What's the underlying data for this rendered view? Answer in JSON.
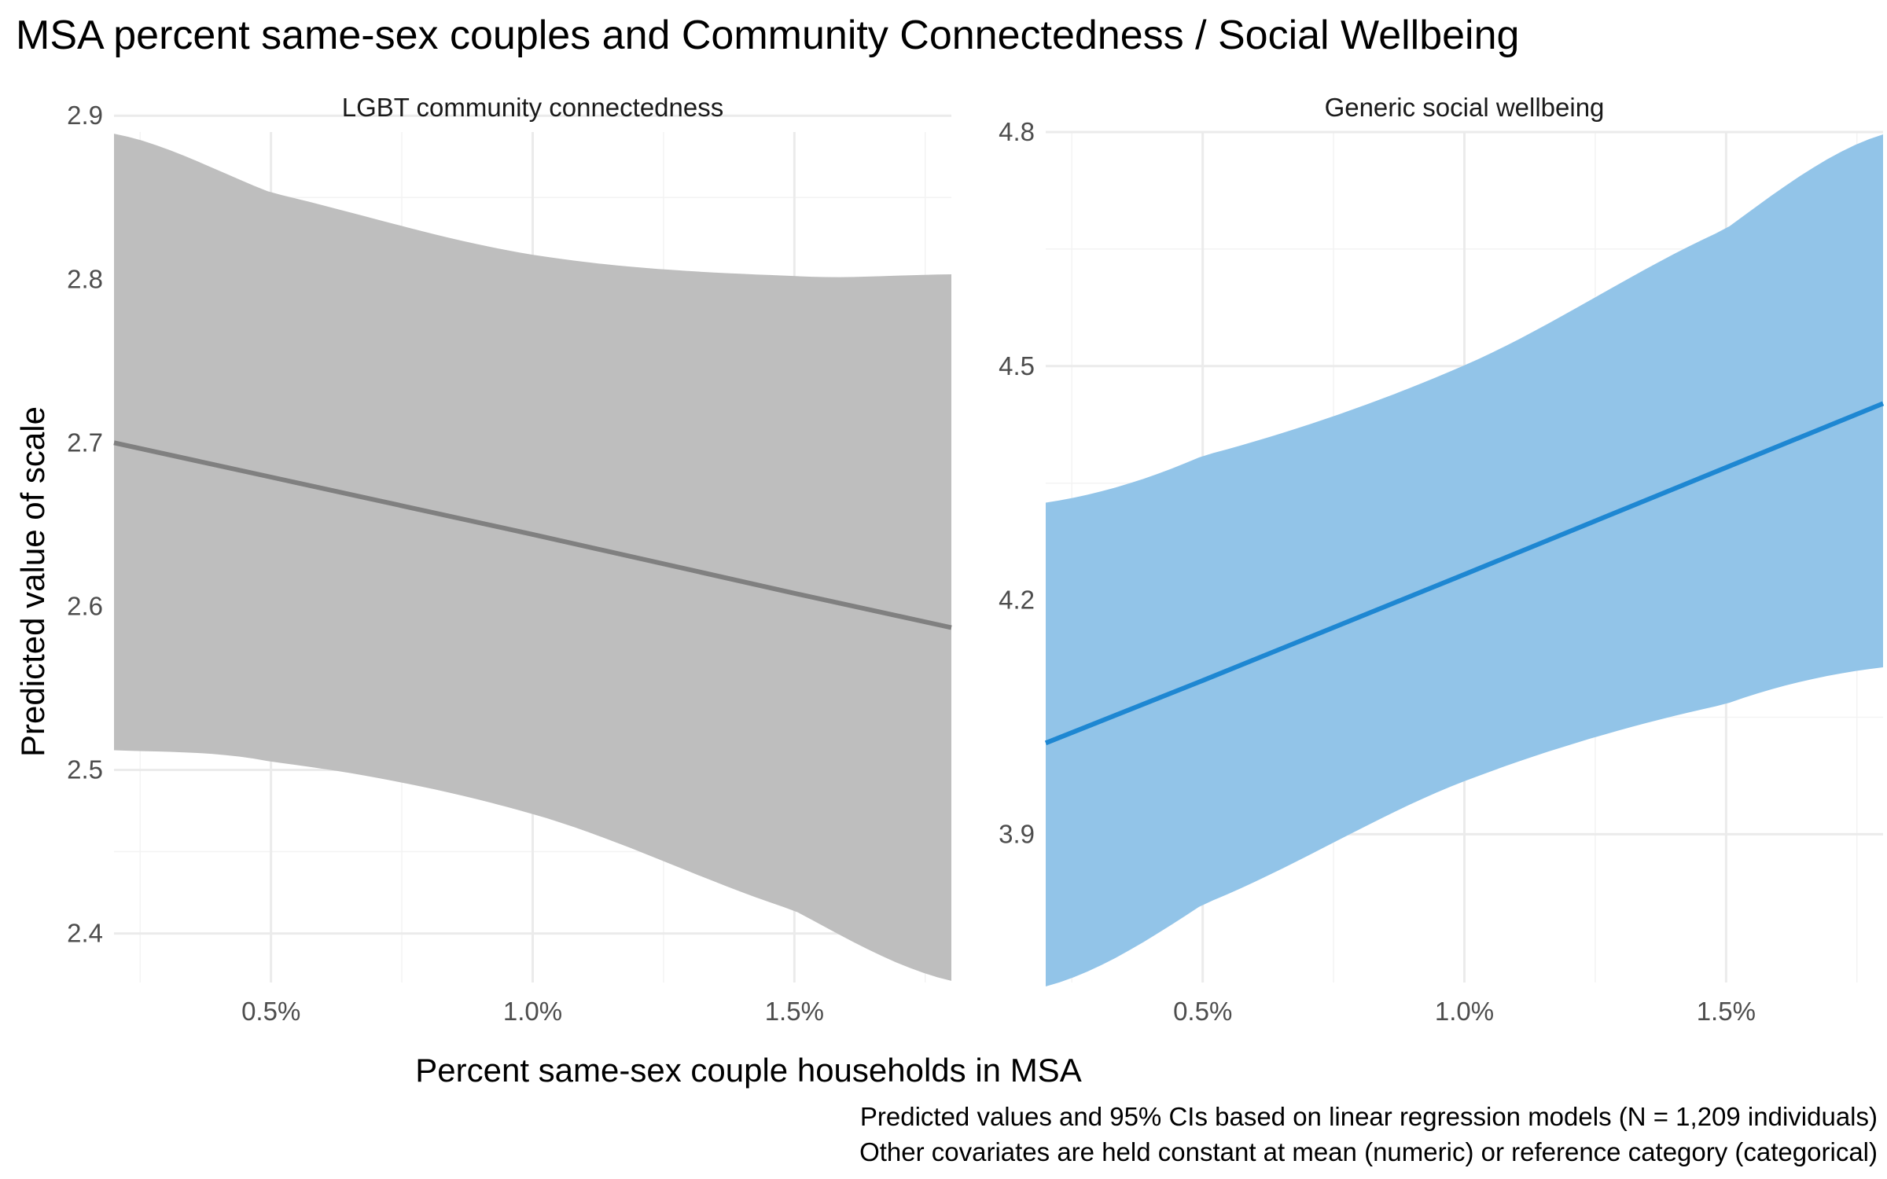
{
  "title": "MSA percent same-sex couples and Community Connectedness / Social Wellbeing",
  "xlabel": "Percent same-sex couple households in MSA",
  "ylabel": "Predicted value of scale",
  "caption_lines": [
    "Predicted values and 95% CIs based on linear regression models (N = 1,209 individuals)",
    "Other covariates are held constant at mean (numeric) or reference category (categorical)"
  ],
  "chart_data": [
    {
      "type": "line",
      "facet": "LGBT community connectedness",
      "xlim": [
        0.2,
        1.8
      ],
      "ylim": [
        2.37,
        2.89
      ],
      "x_ticks": [
        0.5,
        1.0,
        1.5
      ],
      "x_tick_labels": [
        "0.5%",
        "1.0%",
        "1.5%"
      ],
      "y_ticks": [
        2.4,
        2.5,
        2.6,
        2.7,
        2.8,
        2.9
      ],
      "y_tick_labels": [
        "2.4",
        "2.5",
        "2.6",
        "2.7",
        "2.8",
        "2.9"
      ],
      "color_line": "#808080",
      "color_band": "#bebebe",
      "x": [
        0.2,
        0.5,
        1.0,
        1.5,
        1.8
      ],
      "fit": [
        2.7,
        2.679,
        2.644,
        2.608,
        2.587
      ],
      "lower": [
        2.512,
        2.505,
        2.473,
        2.414,
        2.371
      ],
      "upper": [
        2.889,
        2.853,
        2.815,
        2.802,
        2.803
      ],
      "grid": true
    },
    {
      "type": "line",
      "facet": "Generic social wellbeing",
      "xlim": [
        0.2,
        1.8
      ],
      "ylim": [
        3.71,
        4.8
      ],
      "x_ticks": [
        0.5,
        1.0,
        1.5
      ],
      "x_tick_labels": [
        "0.5%",
        "1.0%",
        "1.5%"
      ],
      "y_ticks": [
        3.9,
        4.2,
        4.5,
        4.8
      ],
      "y_tick_labels": [
        "3.9",
        "4.2",
        "4.5",
        "4.8"
      ],
      "color_line": "#1e87d2",
      "color_band": "#92c4e8",
      "x": [
        0.2,
        0.5,
        1.0,
        1.5,
        1.8
      ],
      "fit": [
        4.017,
        4.097,
        4.233,
        4.37,
        4.452
      ],
      "lower": [
        3.705,
        3.81,
        3.968,
        4.067,
        4.114
      ],
      "upper": [
        4.325,
        4.385,
        4.501,
        4.676,
        4.797
      ],
      "grid": true
    }
  ]
}
